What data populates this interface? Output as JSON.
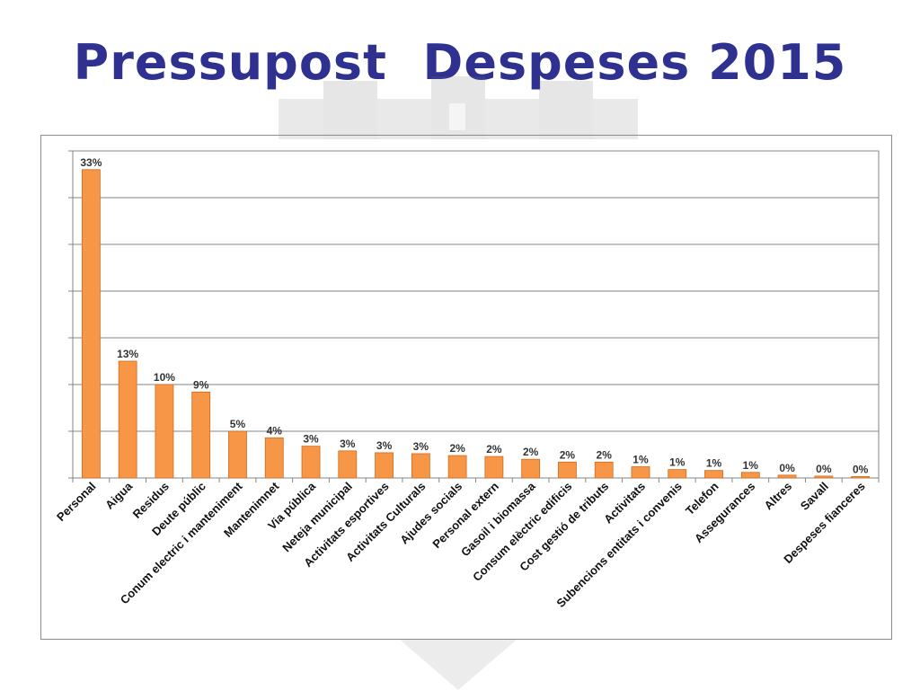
{
  "title": "Pressupost  Despeses 2015",
  "chart_data": {
    "type": "bar",
    "title": "",
    "xlabel": "",
    "ylabel": "",
    "ylim": [
      0,
      35
    ],
    "grid": true,
    "legend": "none",
    "bar_color": "#f79646",
    "bar_edge_color": "#d06a1c",
    "categories": [
      "Personal",
      "Aigua",
      "Residus",
      "Deute públic",
      "Conum electric i manteniment",
      "Mantenimnet",
      "Via pública",
      "Neteja municipal",
      "Activitats esportives",
      "Activitats Culturals",
      "Ajudes socials",
      "Personal extern",
      "Gasoil i biomassa",
      "Consum elèctric edificis",
      "Cost gestió de tributs",
      "Activitats",
      "Subencions entitats i convenis",
      "Telefon",
      "Assegurances",
      "Altres",
      "Savall",
      "Despeses fianceres"
    ],
    "values": [
      33.0,
      12.5,
      10.0,
      9.2,
      5.0,
      4.3,
      3.4,
      2.9,
      2.7,
      2.6,
      2.4,
      2.3,
      2.0,
      1.7,
      1.7,
      1.2,
      0.9,
      0.8,
      0.6,
      0.3,
      0.2,
      0.15
    ],
    "data_labels": [
      "33%",
      "13%",
      "10%",
      "9%",
      "5%",
      "4%",
      "3%",
      "3%",
      "3%",
      "3%",
      "2%",
      "2%",
      "2%",
      "2%",
      "2%",
      "1%",
      "1%",
      "1%",
      "1%",
      "0%",
      "0%",
      "0%"
    ]
  }
}
